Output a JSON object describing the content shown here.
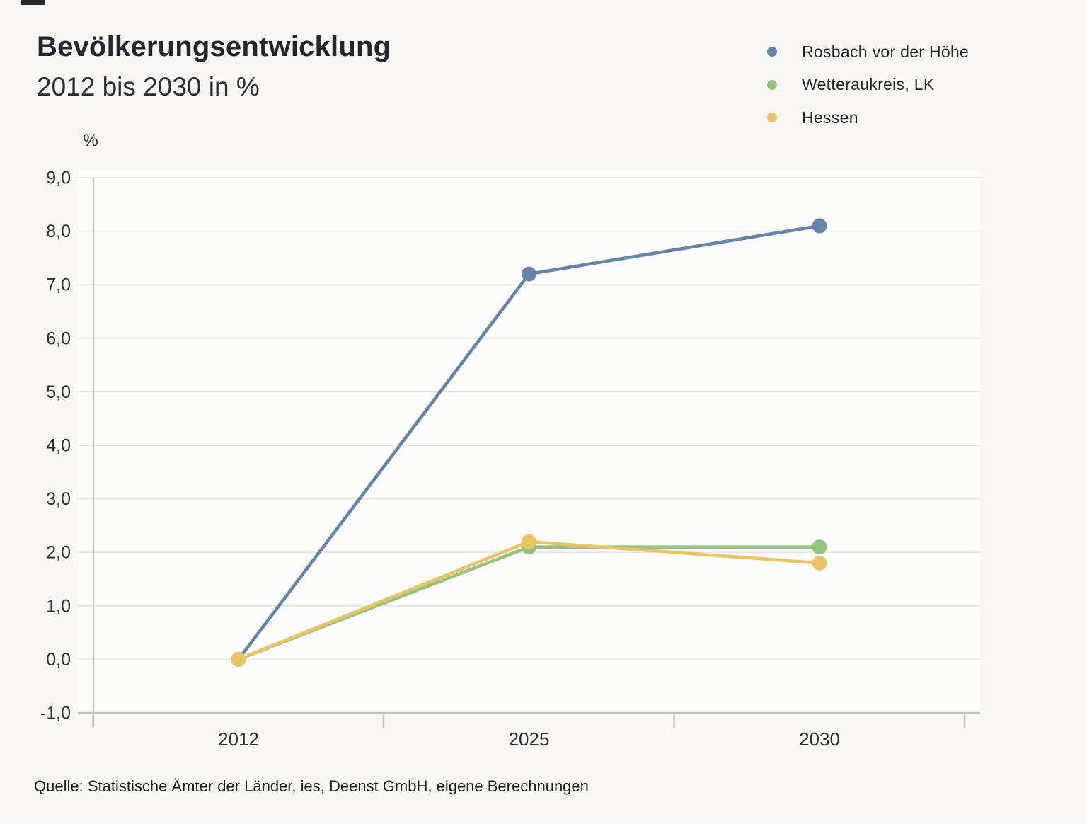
{
  "header": {
    "title": "Bevölkerungsentwicklung",
    "subtitle": "2012 bis 2030 in %"
  },
  "legend": {
    "position": "top-right",
    "items": [
      {
        "label": "Rosbach vor der Höhe",
        "color": "#6484ad"
      },
      {
        "label": "Wetteraukreis, LK",
        "color": "#93c37d"
      },
      {
        "label": "Hessen",
        "color": "#ebc366"
      }
    ]
  },
  "chart_data": {
    "type": "line",
    "title": "Bevölkerungsentwicklung",
    "subtitle": "2012 bis 2030 in %",
    "categories": [
      "2012",
      "2025",
      "2030"
    ],
    "series": [
      {
        "name": "Rosbach vor der Höhe",
        "color": "#6484ad",
        "values": [
          0.0,
          7.2,
          8.1
        ]
      },
      {
        "name": "Wetteraukreis, LK",
        "color": "#93c37d",
        "values": [
          0.0,
          2.1,
          2.1
        ]
      },
      {
        "name": "Hessen",
        "color": "#ebc366",
        "values": [
          0.0,
          2.2,
          1.8
        ]
      }
    ],
    "xlabel": "",
    "ylabel": "%",
    "ylim": [
      -1.0,
      9.0
    ],
    "ytick_step": 1.0,
    "ytick_labels": [
      "9,0",
      "8,0",
      "7,0",
      "6,0",
      "5,0",
      "4,0",
      "3,0",
      "2,0",
      "1,0",
      "0,0",
      "-1,0"
    ],
    "grid": true,
    "legend_position": "top-right",
    "marker": "circle"
  },
  "source": {
    "text": "Quelle: Statistische Ämter der Länder, ies, Deenst GmbH, eigene Berechnungen"
  },
  "colors": {
    "background": "#f7f6f3",
    "plot_background": "#fcfcfb",
    "grid": "#e6e5e3",
    "axis": "#c4c3c1",
    "text": "#2b2d30"
  }
}
